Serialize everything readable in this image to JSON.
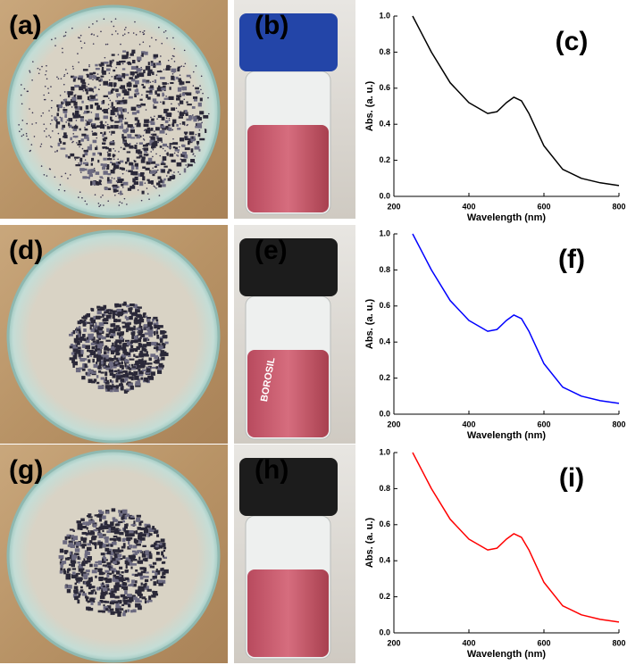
{
  "photo_labels": [
    "(a)",
    "(b)",
    "(d)",
    "(e)",
    "(g)",
    "(h)"
  ],
  "vial_text": "BOROSIL",
  "chart_data": [
    {
      "type": "line",
      "annotation": "(c)",
      "x_label": "Wavelength (nm)",
      "y_label": "Abs. (a. u.)",
      "x": [
        250,
        275,
        300,
        350,
        400,
        450,
        475,
        500,
        520,
        540,
        560,
        580,
        600,
        650,
        700,
        750,
        800
      ],
      "values": [
        1.0,
        0.9,
        0.8,
        0.63,
        0.52,
        0.46,
        0.47,
        0.52,
        0.55,
        0.53,
        0.46,
        0.37,
        0.28,
        0.15,
        0.1,
        0.075,
        0.06
      ],
      "color": "#000000",
      "xlim": [
        200,
        800
      ],
      "ylim": [
        0,
        1
      ],
      "xticks": [
        200,
        400,
        600,
        800
      ],
      "yticks": [
        {
          "value": 0,
          "label": "0.0"
        },
        0.2,
        0.4,
        0.6,
        0.8,
        {
          "value": 1,
          "label": "1.0"
        }
      ]
    },
    {
      "type": "line",
      "annotation": "(f)",
      "x_label": "Wavelength (nm)",
      "y_label": "Abs. (a. u.)",
      "x": [
        250,
        275,
        300,
        350,
        400,
        450,
        475,
        500,
        520,
        540,
        560,
        580,
        600,
        650,
        700,
        750,
        800
      ],
      "values": [
        1.0,
        0.9,
        0.8,
        0.63,
        0.52,
        0.46,
        0.47,
        0.52,
        0.55,
        0.53,
        0.46,
        0.37,
        0.28,
        0.15,
        0.1,
        0.075,
        0.06
      ],
      "color": "#0000ff",
      "xlim": [
        200,
        800
      ],
      "ylim": [
        0,
        1
      ],
      "xticks": [
        200,
        400,
        600,
        800
      ],
      "yticks": [
        {
          "value": 0,
          "label": "0.0"
        },
        0.2,
        0.4,
        0.6,
        0.8,
        {
          "value": 1,
          "label": "1.0"
        }
      ]
    },
    {
      "type": "line",
      "annotation": "(i)",
      "x_label": "Wavelength (nm)",
      "y_label": "Abs. (a. u.)",
      "x": [
        250,
        275,
        300,
        350,
        400,
        450,
        475,
        500,
        520,
        540,
        560,
        580,
        600,
        650,
        700,
        750,
        800
      ],
      "values": [
        1.0,
        0.9,
        0.8,
        0.63,
        0.52,
        0.46,
        0.47,
        0.52,
        0.55,
        0.53,
        0.46,
        0.37,
        0.28,
        0.15,
        0.1,
        0.075,
        0.06
      ],
      "color": "#ff0000",
      "xlim": [
        200,
        800
      ],
      "ylim": [
        0,
        1
      ],
      "xticks": [
        200,
        400,
        600,
        800
      ],
      "yticks": [
        {
          "value": 0,
          "label": "0.0"
        },
        0.2,
        0.4,
        0.6,
        0.8,
        {
          "value": 1,
          "label": "1.0"
        }
      ]
    }
  ]
}
